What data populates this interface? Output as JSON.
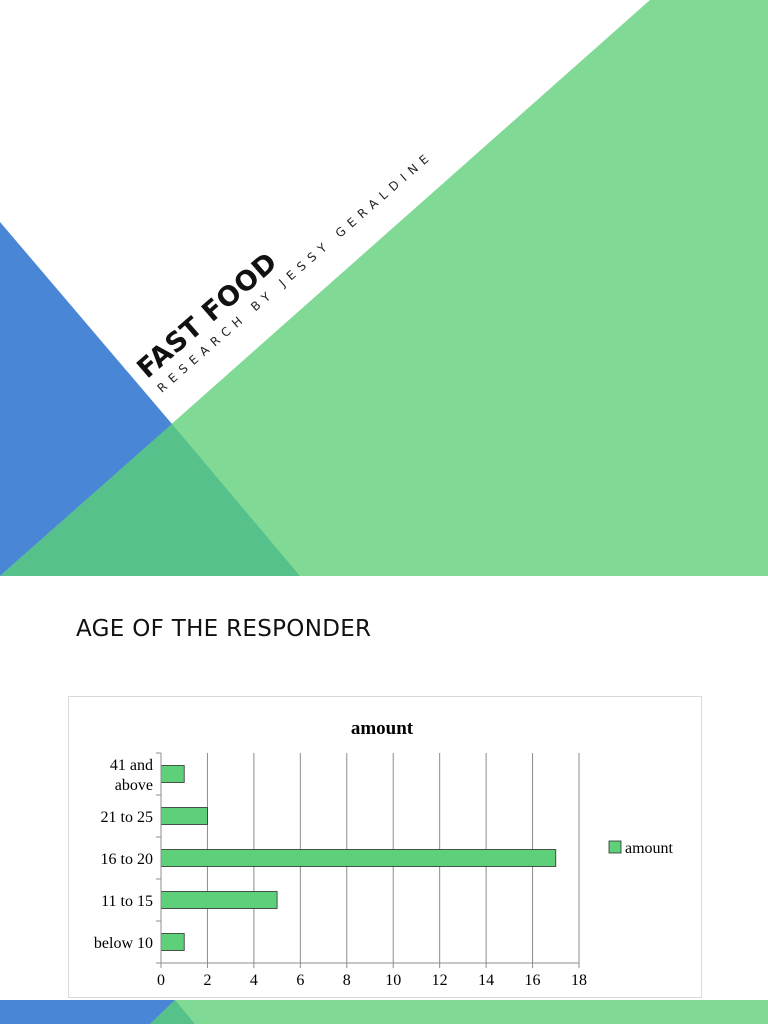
{
  "slide1": {
    "title": "Fast Food",
    "subtitle": "Research by Jessy Geraldine",
    "colors": {
      "green": "#80d995",
      "blue": "#4a86d6",
      "teal": "#57c18b",
      "background": "#ffffff"
    }
  },
  "slide2": {
    "heading": "Age of the Responder"
  },
  "chart_data": {
    "type": "bar",
    "orientation": "horizontal",
    "title": "amount",
    "categories": [
      "below 10",
      "11 to 15",
      "16 to 20",
      "21 to 25",
      "41 and above"
    ],
    "series": [
      {
        "name": "amount",
        "values": [
          1,
          5,
          17,
          2,
          1
        ],
        "color": "#5fd07a"
      }
    ],
    "xlim": [
      0,
      18
    ],
    "xticks": [
      0,
      2,
      4,
      6,
      8,
      10,
      12,
      14,
      16,
      18
    ],
    "grid": true,
    "legend": "right"
  }
}
